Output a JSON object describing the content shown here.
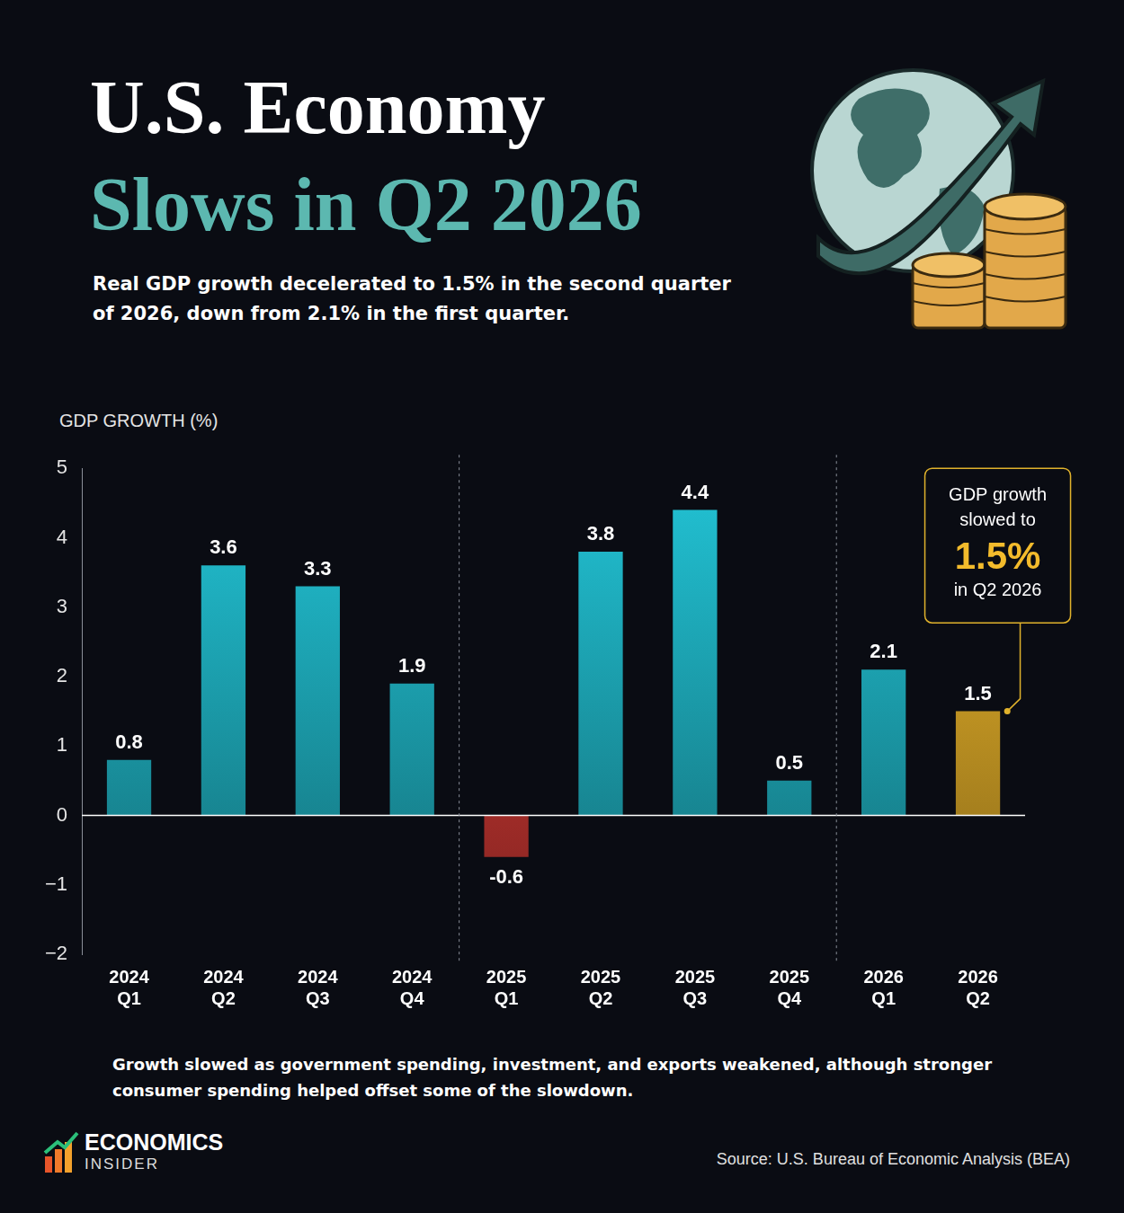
{
  "chart_data": {
    "type": "bar",
    "title": [
      "U.S. Economy",
      "Slows in Q2 2026"
    ],
    "subtitle": "Real GDP growth decelerated to 1.5% in the second quarter of 2026, down from 2.1% in the first quarter.",
    "y_label": "GDP GROWTH (%)",
    "categories": [
      "2024 Q1",
      "2024 Q2",
      "2024 Q3",
      "2024 Q4",
      "2025 Q1",
      "2025 Q2",
      "2025 Q3",
      "2025 Q4",
      "2026 Q1",
      "2026 Q2"
    ],
    "values": [
      0.8,
      3.6,
      3.3,
      1.9,
      -0.6,
      3.8,
      4.4,
      0.5,
      2.1,
      1.5
    ],
    "colors": [
      "#22c4d6",
      "#22c4d6",
      "#22c4d6",
      "#22c4d6",
      "#e8403a",
      "#22c4d6",
      "#22c4d6",
      "#22c4d6",
      "#22c4d6",
      "#f3bb2c"
    ],
    "ylim": [
      -2,
      5
    ],
    "yticks": [
      {
        "value": -2,
        "label": "−2"
      },
      {
        "value": -1,
        "label": "−1"
      },
      0,
      1,
      2,
      3,
      4,
      5
    ],
    "grid": false,
    "data_labels": true,
    "annotation": {
      "category": "2026 Q2",
      "lines": [
        "GDP growth slowed to",
        "1.5%",
        "in Q2 2026"
      ]
    }
  },
  "note": "Growth slowed as government spending, investment, and exports weakened, although stronger consumer spending helped offset some of the slowdown.",
  "brand": [
    "ECONOMICS",
    "INSIDER"
  ],
  "source": "Source: U.S. Bureau of Economic Analysis (BEA)"
}
